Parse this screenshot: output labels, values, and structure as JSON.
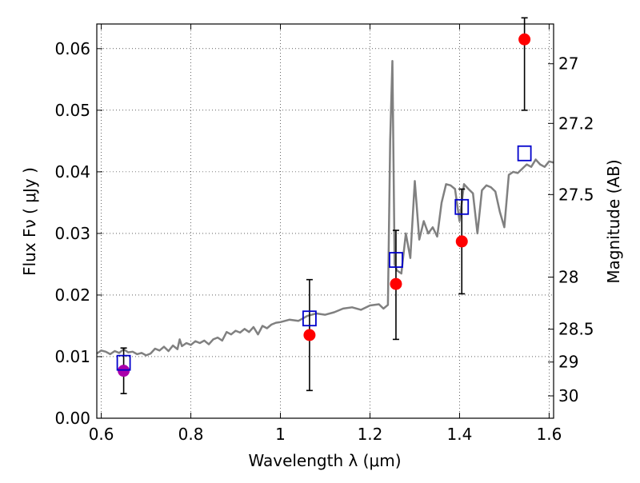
{
  "chart_data": {
    "type": "scatter",
    "xlabel": "Wavelength  λ (μm)",
    "ylabel": "Flux  Fν  ( μJy )",
    "ylabel_right": "Magnitude (AB)",
    "xlim": [
      0.59,
      1.61
    ],
    "ylim": [
      0,
      0.064
    ],
    "grid": true,
    "x_ticks": [
      {
        "value": 0.6,
        "label": "0.6"
      },
      {
        "value": 0.8,
        "label": "0.8"
      },
      {
        "value": 1.0,
        "label": "1"
      },
      {
        "value": 1.2,
        "label": "1.2"
      },
      {
        "value": 1.4,
        "label": "1.4"
      },
      {
        "value": 1.6,
        "label": "1.6"
      }
    ],
    "y_ticks": [
      {
        "value": 0.0,
        "label": "0.00"
      },
      {
        "value": 0.01,
        "label": "0.01"
      },
      {
        "value": 0.02,
        "label": "0.02"
      },
      {
        "value": 0.03,
        "label": "0.03"
      },
      {
        "value": 0.04,
        "label": "0.04"
      },
      {
        "value": 0.05,
        "label": "0.05"
      },
      {
        "value": 0.06,
        "label": "0.06"
      }
    ],
    "right_ticks": [
      {
        "mag": 27,
        "label": "27"
      },
      {
        "mag": 27.2,
        "label": "27.2"
      },
      {
        "mag": 27.5,
        "label": "27.5"
      },
      {
        "mag": 28,
        "label": "28"
      },
      {
        "mag": 28.5,
        "label": "28.5"
      },
      {
        "mag": 29,
        "label": "29"
      },
      {
        "mag": 30,
        "label": "30"
      }
    ],
    "model_spectrum": {
      "color": "#808080",
      "x": [
        0.59,
        0.6,
        0.61,
        0.62,
        0.63,
        0.64,
        0.65,
        0.66,
        0.67,
        0.68,
        0.69,
        0.7,
        0.71,
        0.72,
        0.73,
        0.74,
        0.75,
        0.76,
        0.77,
        0.775,
        0.78,
        0.79,
        0.8,
        0.81,
        0.82,
        0.83,
        0.84,
        0.85,
        0.86,
        0.87,
        0.88,
        0.89,
        0.9,
        0.91,
        0.92,
        0.93,
        0.94,
        0.95,
        0.96,
        0.97,
        0.98,
        0.99,
        1.0,
        1.02,
        1.04,
        1.06,
        1.08,
        1.1,
        1.12,
        1.14,
        1.16,
        1.18,
        1.2,
        1.22,
        1.23,
        1.24,
        1.245,
        1.25,
        1.255,
        1.26,
        1.27,
        1.28,
        1.29,
        1.3,
        1.31,
        1.32,
        1.33,
        1.34,
        1.35,
        1.36,
        1.37,
        1.38,
        1.39,
        1.4,
        1.41,
        1.42,
        1.43,
        1.44,
        1.45,
        1.46,
        1.47,
        1.48,
        1.49,
        1.5,
        1.51,
        1.52,
        1.53,
        1.54,
        1.55,
        1.56,
        1.57,
        1.58,
        1.59,
        1.6,
        1.61
      ],
      "y": [
        0.0105,
        0.011,
        0.0108,
        0.0104,
        0.0109,
        0.0106,
        0.0112,
        0.0107,
        0.0108,
        0.0104,
        0.0106,
        0.0102,
        0.0105,
        0.0113,
        0.011,
        0.0116,
        0.0109,
        0.0118,
        0.0112,
        0.0128,
        0.0117,
        0.0122,
        0.0119,
        0.0125,
        0.0122,
        0.0126,
        0.012,
        0.0128,
        0.0131,
        0.0126,
        0.014,
        0.0136,
        0.0142,
        0.0139,
        0.0145,
        0.014,
        0.0148,
        0.0136,
        0.015,
        0.0146,
        0.0152,
        0.0155,
        0.0156,
        0.016,
        0.0158,
        0.0166,
        0.017,
        0.0168,
        0.0172,
        0.0178,
        0.018,
        0.0176,
        0.0183,
        0.0185,
        0.0178,
        0.0184,
        0.045,
        0.058,
        0.025,
        0.024,
        0.0235,
        0.03,
        0.026,
        0.0385,
        0.029,
        0.032,
        0.03,
        0.031,
        0.0295,
        0.035,
        0.038,
        0.0378,
        0.0372,
        0.032,
        0.038,
        0.0372,
        0.0365,
        0.03,
        0.037,
        0.0378,
        0.0375,
        0.0368,
        0.0335,
        0.031,
        0.0395,
        0.04,
        0.0398,
        0.0405,
        0.0412,
        0.0408,
        0.042,
        0.0412,
        0.0408,
        0.0417,
        0.0415
      ]
    },
    "series": [
      {
        "marker": "circle",
        "color": "#ff0000",
        "points": [
          {
            "x": 1.065,
            "y": 0.0135,
            "err_lo": 0.009,
            "err_hi": 0.009
          },
          {
            "x": 1.258,
            "y": 0.0218,
            "err_lo": 0.009,
            "err_hi": 0.0087
          },
          {
            "x": 1.405,
            "y": 0.0287,
            "err_lo": 0.0085,
            "err_hi": 0.0085
          },
          {
            "x": 1.545,
            "y": 0.0615,
            "err_lo": 0.0115,
            "err_hi": 0.0035
          }
        ]
      },
      {
        "marker": "circle",
        "color": "#aa00aa",
        "points": [
          {
            "x": 0.65,
            "y": 0.0077,
            "err_lo": 0.0037,
            "err_hi": 0.0037
          }
        ]
      },
      {
        "marker": "square",
        "color": "#0000cc",
        "points": [
          {
            "x": 0.65,
            "y": 0.009
          },
          {
            "x": 1.065,
            "y": 0.0162
          },
          {
            "x": 1.258,
            "y": 0.0257
          },
          {
            "x": 1.405,
            "y": 0.0343
          },
          {
            "x": 1.545,
            "y": 0.043
          }
        ]
      }
    ]
  }
}
